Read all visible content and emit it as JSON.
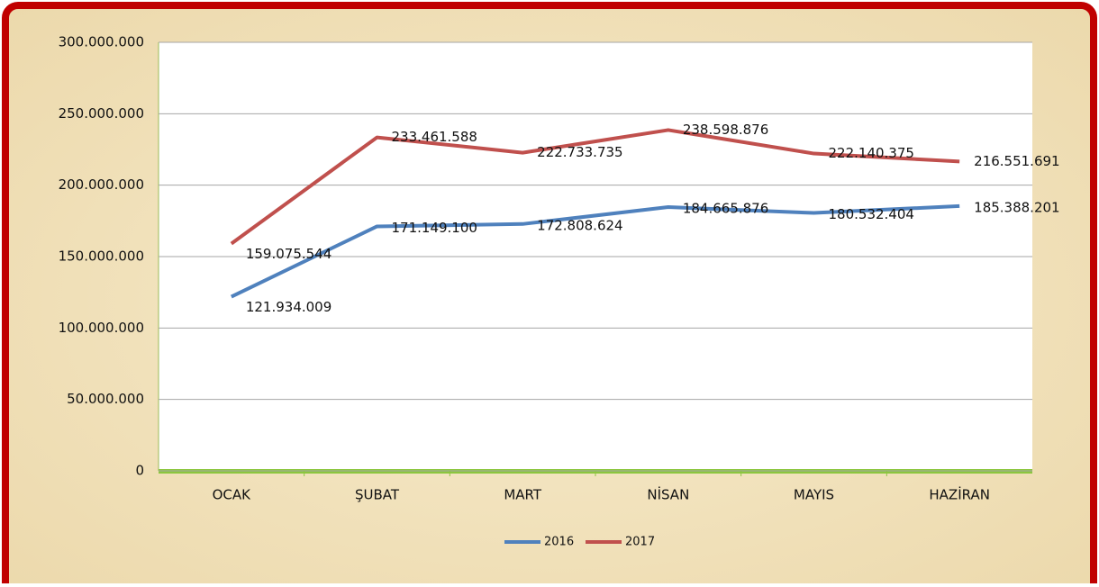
{
  "chart_data": {
    "type": "line",
    "categories": [
      "OCAK",
      "ŞUBAT",
      "MART",
      "NİSAN",
      "MAYIS",
      "HAZİRAN"
    ],
    "series": [
      {
        "name": "2016",
        "color": "#4f81bd",
        "values": [
          121934009,
          171149100,
          172808624,
          184665876,
          180532404,
          185388201
        ],
        "value_labels": [
          "121.934.009",
          "171.149.100",
          "172.808.624",
          "184.665.876",
          "180.532.404",
          "185.388.201"
        ]
      },
      {
        "name": "2017",
        "color": "#c0504d",
        "values": [
          159075544,
          233461588,
          222733735,
          238598876,
          222140375,
          216551691
        ],
        "value_labels": [
          "159.075.544",
          "233.461.588",
          "222.733.735",
          "238.598.876",
          "222.140.375",
          "216.551.691"
        ]
      }
    ],
    "ylim": [
      0,
      300000000
    ],
    "yticks": [
      0,
      {
        "value": 50000000,
        "label": "50.000.000"
      },
      {
        "value": 100000000,
        "label": "100.000.000"
      },
      {
        "value": 150000000,
        "label": "150.000.000"
      },
      {
        "value": 200000000,
        "label": "200.000.000"
      },
      {
        "value": 250000000,
        "label": "250.000.000"
      },
      {
        "value": 300000000,
        "label": "300.000.000"
      }
    ],
    "grid": true,
    "legend": "bottom"
  }
}
